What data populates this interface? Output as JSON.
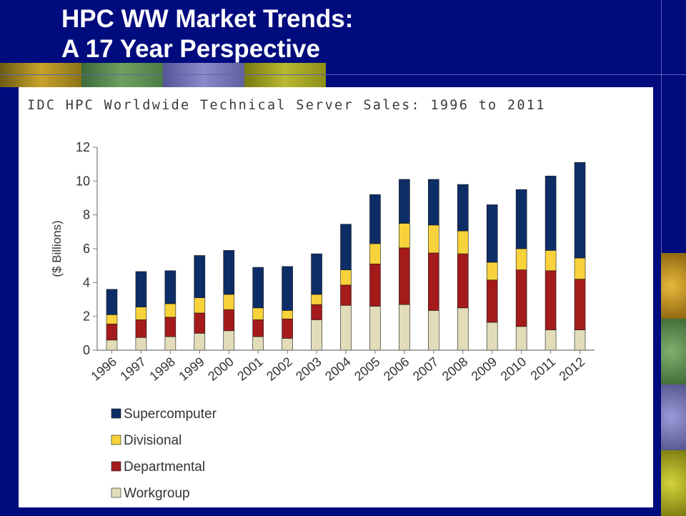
{
  "slide": {
    "title_line1": "HPC WW Market Trends:",
    "title_line2": "A 17 Year Perspective"
  },
  "colors": {
    "background": "#000b7d",
    "supercomputer": "#0d2d67",
    "divisional": "#f7d23a",
    "departmental": "#a51a1a",
    "workgroup": "#e2dcb8"
  },
  "chart_data": {
    "type": "bar",
    "stacked": true,
    "title": "IDC HPC Worldwide Technical Server Sales: 1996 to 2011",
    "xlabel": "",
    "ylabel": "($ Billions)",
    "ylim": [
      0,
      12
    ],
    "yticks": [
      0,
      2,
      4,
      6,
      8,
      10,
      12
    ],
    "grid": false,
    "legend": "bottom-left",
    "categories": [
      "1996",
      "1997",
      "1998",
      "1999",
      "2000",
      "2001",
      "2002",
      "2003",
      "2004",
      "2005",
      "2006",
      "2007",
      "2008",
      "2009",
      "2010",
      "2011",
      "2012"
    ],
    "series": [
      {
        "name": "Workgroup",
        "values": [
          0.6,
          0.75,
          0.8,
          1.0,
          1.15,
          0.8,
          0.7,
          1.8,
          2.65,
          2.6,
          2.7,
          2.35,
          2.5,
          1.65,
          1.4,
          1.2,
          1.2
        ]
      },
      {
        "name": "Departmental",
        "values": [
          0.95,
          1.05,
          1.15,
          1.2,
          1.25,
          1.0,
          1.15,
          0.9,
          1.2,
          2.5,
          3.35,
          3.4,
          3.2,
          2.5,
          3.35,
          3.5,
          3.0
        ]
      },
      {
        "name": "Divisional",
        "values": [
          0.55,
          0.75,
          0.8,
          0.9,
          0.9,
          0.7,
          0.5,
          0.6,
          0.9,
          1.2,
          1.45,
          1.65,
          1.35,
          1.05,
          1.25,
          1.2,
          1.25
        ]
      },
      {
        "name": "Supercomputer",
        "values": [
          1.5,
          2.1,
          1.95,
          2.5,
          2.6,
          2.4,
          2.6,
          2.4,
          2.7,
          2.9,
          2.6,
          2.7,
          2.75,
          3.4,
          3.5,
          4.4,
          5.65
        ]
      }
    ]
  }
}
